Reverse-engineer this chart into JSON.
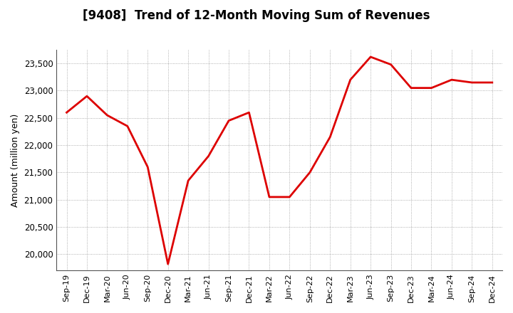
{
  "title": "[9408]  Trend of 12-Month Moving Sum of Revenues",
  "ylabel": "Amount (million yen)",
  "line_color": "#dd0000",
  "line_width": 2.0,
  "background_color": "#ffffff",
  "grid_color": "#999999",
  "ylim": [
    19700,
    23750
  ],
  "yticks": [
    20000,
    20500,
    21000,
    21500,
    22000,
    22500,
    23000,
    23500
  ],
  "x_labels": [
    "Sep-19",
    "Dec-19",
    "Mar-20",
    "Jun-20",
    "Sep-20",
    "Dec-20",
    "Mar-21",
    "Jun-21",
    "Sep-21",
    "Dec-21",
    "Mar-22",
    "Jun-22",
    "Sep-22",
    "Dec-22",
    "Mar-23",
    "Jun-23",
    "Sep-23",
    "Dec-23",
    "Mar-24",
    "Jun-24",
    "Sep-24",
    "Dec-24"
  ],
  "values": [
    22600,
    22900,
    22550,
    22350,
    21600,
    19820,
    21350,
    21800,
    22450,
    22600,
    21050,
    21050,
    21500,
    22150,
    23200,
    23620,
    23480,
    23050,
    23050,
    23200,
    23150,
    23150
  ]
}
